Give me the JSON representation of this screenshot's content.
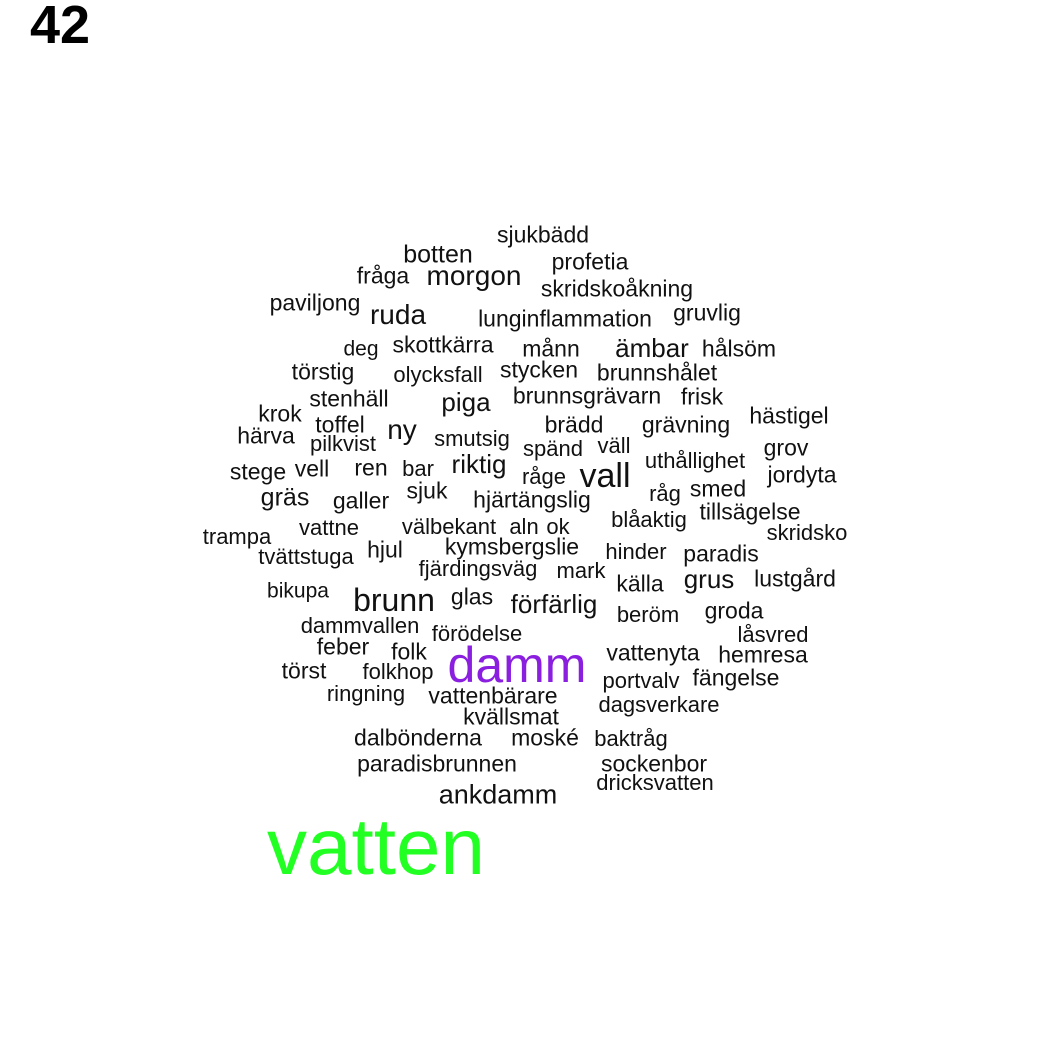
{
  "page_number": "42",
  "colors": {
    "default_word": "#111111",
    "highlight_primary": "#22ff22",
    "highlight_secondary": "#8b1fe0"
  },
  "words": [
    {
      "text": "sjukbädd"
    },
    {
      "text": "botten"
    },
    {
      "text": "profetia"
    },
    {
      "text": "fråga"
    },
    {
      "text": "morgon"
    },
    {
      "text": "skridskoåkning"
    },
    {
      "text": "paviljong"
    },
    {
      "text": "ruda"
    },
    {
      "text": "lunginflammation"
    },
    {
      "text": "gruvlig"
    },
    {
      "text": "deg"
    },
    {
      "text": "skottkärra"
    },
    {
      "text": "månn"
    },
    {
      "text": "ämbar"
    },
    {
      "text": "hålsöm"
    },
    {
      "text": "törstig"
    },
    {
      "text": "olycksfall"
    },
    {
      "text": "stycken"
    },
    {
      "text": "brunnshålet"
    },
    {
      "text": "stenhäll"
    },
    {
      "text": "piga"
    },
    {
      "text": "brunnsgrävarn"
    },
    {
      "text": "frisk"
    },
    {
      "text": "krok"
    },
    {
      "text": "toffel"
    },
    {
      "text": "hästigel"
    },
    {
      "text": "härva"
    },
    {
      "text": "ny"
    },
    {
      "text": "brädd"
    },
    {
      "text": "grävning"
    },
    {
      "text": "pilkvist"
    },
    {
      "text": "smutsig"
    },
    {
      "text": "spänd"
    },
    {
      "text": "väll"
    },
    {
      "text": "grov"
    },
    {
      "text": "riktig"
    },
    {
      "text": "uthållighet"
    },
    {
      "text": "stege"
    },
    {
      "text": "vell"
    },
    {
      "text": "ren"
    },
    {
      "text": "bar"
    },
    {
      "text": "vall"
    },
    {
      "text": "råge"
    },
    {
      "text": "jordyta"
    },
    {
      "text": "smed"
    },
    {
      "text": "gräs"
    },
    {
      "text": "sjuk"
    },
    {
      "text": "råg"
    },
    {
      "text": "galler"
    },
    {
      "text": "hjärtängslig"
    },
    {
      "text": "tillsägelse"
    },
    {
      "text": "blåaktig"
    },
    {
      "text": "trampa"
    },
    {
      "text": "vattne"
    },
    {
      "text": "välbekant"
    },
    {
      "text": "aln"
    },
    {
      "text": "ok"
    },
    {
      "text": "skridsko"
    },
    {
      "text": "kymsbergslie"
    },
    {
      "text": "hinder"
    },
    {
      "text": "tvättstuga"
    },
    {
      "text": "hjul"
    },
    {
      "text": "paradis"
    },
    {
      "text": "fjärdingsväg"
    },
    {
      "text": "mark"
    },
    {
      "text": "grus"
    },
    {
      "text": "lustgård"
    },
    {
      "text": "källa"
    },
    {
      "text": "bikupa"
    },
    {
      "text": "brunn"
    },
    {
      "text": "glas"
    },
    {
      "text": "förfärlig"
    },
    {
      "text": "beröm"
    },
    {
      "text": "groda"
    },
    {
      "text": "dammvallen"
    },
    {
      "text": "förödelse"
    },
    {
      "text": "låsvred"
    },
    {
      "text": "feber"
    },
    {
      "text": "folk"
    },
    {
      "text": "damm"
    },
    {
      "text": "vattenyta"
    },
    {
      "text": "hemresa"
    },
    {
      "text": "törst"
    },
    {
      "text": "folkhop"
    },
    {
      "text": "fängelse"
    },
    {
      "text": "portvalv"
    },
    {
      "text": "ringning"
    },
    {
      "text": "vattenbärare"
    },
    {
      "text": "dagsverkare"
    },
    {
      "text": "kvällsmat"
    },
    {
      "text": "dalbönderna"
    },
    {
      "text": "moské"
    },
    {
      "text": "baktråg"
    },
    {
      "text": "paradisbrunnen"
    },
    {
      "text": "sockenbor"
    },
    {
      "text": "dricksvatten"
    },
    {
      "text": "ankdamm"
    },
    {
      "text": "vatten"
    }
  ]
}
